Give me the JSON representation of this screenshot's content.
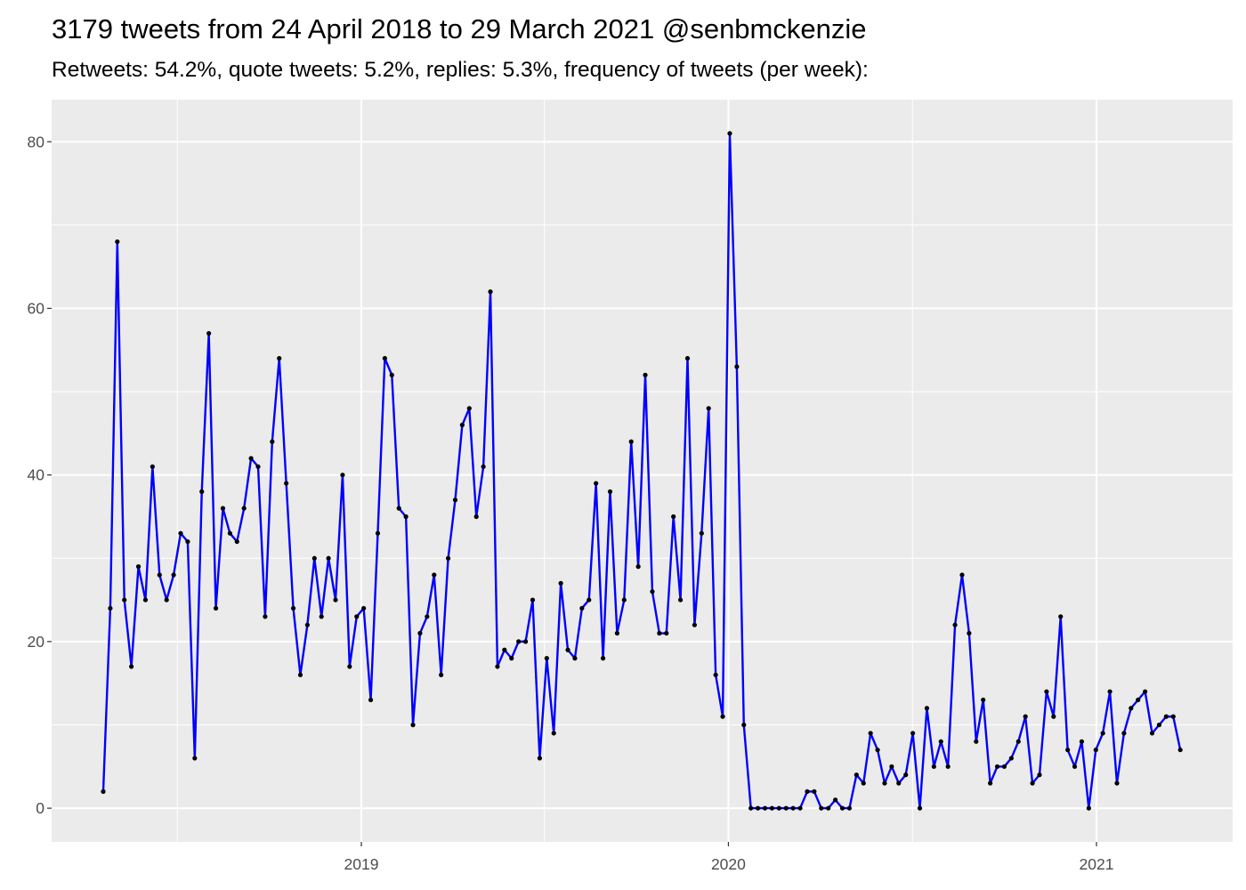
{
  "chart_data": {
    "type": "line",
    "title": "3179 tweets from 24 April 2018 to 29 March 2021 @senbmckenzie",
    "subtitle": "Retweets: 54.2%, quote tweets: 5.2%, replies: 5.3%, frequency of tweets (per week):",
    "xlabel": "",
    "ylabel": "",
    "x_ticks": [
      "2019",
      "2020",
      "2021"
    ],
    "y_ticks": [
      0,
      20,
      40,
      60,
      80
    ],
    "grid": true,
    "line_color": "#0000ff",
    "point_color": "#000000",
    "panel_color": "#ebebeb",
    "x": [
      "2018-04-22",
      "2018-04-29",
      "2018-05-06",
      "2018-05-13",
      "2018-05-20",
      "2018-05-27",
      "2018-06-03",
      "2018-06-10",
      "2018-06-17",
      "2018-06-24",
      "2018-07-01",
      "2018-07-08",
      "2018-07-15",
      "2018-07-22",
      "2018-07-29",
      "2018-08-05",
      "2018-08-12",
      "2018-08-19",
      "2018-08-26",
      "2018-09-02",
      "2018-09-09",
      "2018-09-16",
      "2018-09-23",
      "2018-09-30",
      "2018-10-07",
      "2018-10-14",
      "2018-10-21",
      "2018-10-28",
      "2018-11-04",
      "2018-11-11",
      "2018-11-18",
      "2018-11-25",
      "2018-12-02",
      "2018-12-09",
      "2018-12-16",
      "2018-12-23",
      "2018-12-30",
      "2019-01-06",
      "2019-01-13",
      "2019-01-20",
      "2019-01-27",
      "2019-02-03",
      "2019-02-10",
      "2019-02-17",
      "2019-02-24",
      "2019-03-03",
      "2019-03-10",
      "2019-03-17",
      "2019-03-24",
      "2019-03-31",
      "2019-04-07",
      "2019-04-14",
      "2019-04-21",
      "2019-04-28",
      "2019-05-05",
      "2019-05-12",
      "2019-05-19",
      "2019-05-26",
      "2019-06-02",
      "2019-06-09",
      "2019-06-16",
      "2019-06-23",
      "2019-06-30",
      "2019-07-07",
      "2019-07-14",
      "2019-07-21",
      "2019-07-28",
      "2019-08-04",
      "2019-08-11",
      "2019-08-18",
      "2019-08-25",
      "2019-09-01",
      "2019-09-08",
      "2019-09-15",
      "2019-09-22",
      "2019-09-29",
      "2019-10-06",
      "2019-10-13",
      "2019-10-20",
      "2019-10-27",
      "2019-11-03",
      "2019-11-10",
      "2019-11-17",
      "2019-11-24",
      "2019-12-01",
      "2019-12-08",
      "2019-12-15",
      "2019-12-22",
      "2019-12-29",
      "2020-01-05",
      "2020-01-12",
      "2020-01-19",
      "2020-01-26",
      "2020-02-02",
      "2020-02-09",
      "2020-02-16",
      "2020-02-23",
      "2020-03-01",
      "2020-03-08",
      "2020-03-15",
      "2020-03-22",
      "2020-03-29",
      "2020-04-05",
      "2020-04-12",
      "2020-04-19",
      "2020-04-26",
      "2020-05-03",
      "2020-05-10",
      "2020-05-17",
      "2020-05-24",
      "2020-05-31",
      "2020-06-07",
      "2020-06-14",
      "2020-06-21",
      "2020-06-28",
      "2020-07-05",
      "2020-07-12",
      "2020-07-19",
      "2020-07-26",
      "2020-08-02",
      "2020-08-09",
      "2020-08-16",
      "2020-08-23",
      "2020-08-30",
      "2020-09-06",
      "2020-09-13",
      "2020-09-20",
      "2020-09-27",
      "2020-10-04",
      "2020-10-11",
      "2020-10-18",
      "2020-10-25",
      "2020-11-01",
      "2020-11-08",
      "2020-11-15",
      "2020-11-22",
      "2020-11-29",
      "2020-12-06",
      "2020-12-13",
      "2020-12-20",
      "2020-12-27",
      "2021-01-03",
      "2021-01-10",
      "2021-01-17",
      "2021-01-24",
      "2021-01-31",
      "2021-02-07",
      "2021-02-14",
      "2021-02-21",
      "2021-02-28",
      "2021-03-07",
      "2021-03-14",
      "2021-03-21",
      "2021-03-28"
    ],
    "y": [
      2,
      24,
      68,
      25,
      17,
      29,
      25,
      41,
      28,
      25,
      28,
      33,
      32,
      6,
      38,
      57,
      24,
      36,
      33,
      32,
      36,
      42,
      41,
      23,
      44,
      54,
      39,
      24,
      16,
      22,
      30,
      23,
      30,
      25,
      40,
      17,
      23,
      24,
      13,
      33,
      54,
      52,
      36,
      35,
      10,
      21,
      23,
      28,
      16,
      30,
      37,
      46,
      48,
      35,
      41,
      62,
      17,
      19,
      18,
      20,
      20,
      25,
      6,
      18,
      9,
      27,
      19,
      18,
      24,
      25,
      39,
      18,
      38,
      21,
      25,
      44,
      29,
      52,
      26,
      21,
      21,
      35,
      25,
      54,
      22,
      33,
      48,
      16,
      11,
      81,
      53,
      10,
      0,
      0,
      0,
      0,
      0,
      0,
      0,
      0,
      2,
      2,
      0,
      0,
      1,
      0,
      0,
      4,
      3,
      9,
      7,
      3,
      5,
      3,
      4,
      9,
      0,
      12,
      5,
      8,
      5,
      22,
      28,
      21,
      8,
      13,
      3,
      5,
      5,
      6,
      8,
      11,
      3,
      4,
      14,
      11,
      23,
      7,
      5,
      8,
      0,
      7,
      9,
      14,
      3,
      9,
      12,
      13,
      14,
      9,
      10,
      11,
      11,
      7
    ]
  }
}
